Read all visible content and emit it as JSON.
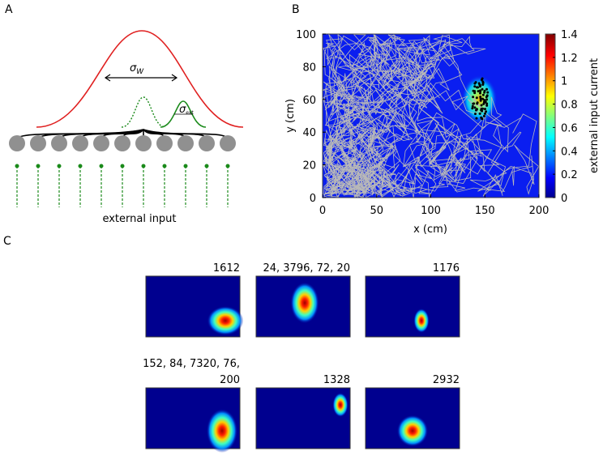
{
  "panels": {
    "a": {
      "label": "A",
      "sigma_w": {
        "symbol": "σ",
        "sub": "W"
      },
      "sigma_ext": {
        "symbol": "σ",
        "sub": "ext"
      },
      "input_label": "external input"
    },
    "b": {
      "label": "B",
      "xlabel": "x (cm)",
      "ylabel": "y (cm)",
      "xlim": [
        0,
        200
      ],
      "ylim": [
        0,
        100
      ],
      "xticks": [
        0,
        50,
        100,
        150,
        200
      ],
      "yticks": [
        0,
        20,
        40,
        60,
        80,
        100
      ],
      "colorbar_label": "external input current",
      "clim": [
        0,
        1.4
      ],
      "cticks": [
        0,
        0.2,
        0.4,
        0.6,
        0.8,
        1,
        1.2,
        1.4
      ]
    },
    "c": {
      "label": "C",
      "maps": [
        {
          "title": [
            "1612"
          ]
        },
        {
          "title": [
            "24, 3796, 72, 20"
          ]
        },
        {
          "title": [
            "1176"
          ]
        },
        {
          "title": [
            "152, 84, 7320, 76,",
            "200"
          ]
        },
        {
          "title": [
            "1328"
          ]
        },
        {
          "title": [
            "2932"
          ]
        }
      ]
    }
  }
}
